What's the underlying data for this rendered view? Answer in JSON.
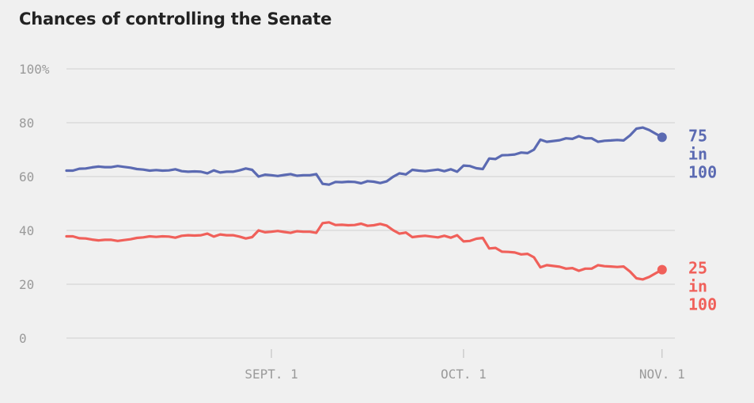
{
  "title": "Chances of controlling the Senate",
  "chart_data": {
    "type": "line",
    "title": "Chances of controlling the Senate",
    "xlabel": "",
    "ylabel": "",
    "ylim": [
      0,
      100
    ],
    "yticks": [
      "100%",
      "80",
      "60",
      "40",
      "20",
      "0"
    ],
    "xticks": [
      "SEPT. 1",
      "OCT. 1",
      "NOV. 1"
    ],
    "grid": true,
    "legend": "end-labels",
    "x_range": [
      "Jul 31",
      "Nov 3"
    ],
    "series": [
      {
        "name": "",
        "color": "#5b6ab2",
        "end_label": [
          "75",
          "in",
          "100"
        ],
        "points": [
          [
            0,
            62.2
          ],
          [
            1,
            62.2
          ],
          [
            2,
            62.9
          ],
          [
            3,
            63.0
          ],
          [
            4,
            63.4
          ],
          [
            5,
            63.7
          ],
          [
            6,
            63.5
          ],
          [
            7,
            63.5
          ],
          [
            8,
            63.9
          ],
          [
            9,
            63.6
          ],
          [
            10,
            63.3
          ],
          [
            11,
            62.8
          ],
          [
            12,
            62.6
          ],
          [
            13,
            62.2
          ],
          [
            14,
            62.4
          ],
          [
            15,
            62.2
          ],
          [
            16,
            62.3
          ],
          [
            17,
            62.7
          ],
          [
            18,
            62.0
          ],
          [
            19,
            61.8
          ],
          [
            20,
            61.9
          ],
          [
            21,
            61.8
          ],
          [
            22,
            61.2
          ],
          [
            23,
            62.3
          ],
          [
            24,
            61.5
          ],
          [
            25,
            61.8
          ],
          [
            26,
            61.8
          ],
          [
            27,
            62.3
          ],
          [
            28,
            63.0
          ],
          [
            29,
            62.5
          ],
          [
            30,
            60.0
          ],
          [
            31,
            60.7
          ],
          [
            32,
            60.5
          ],
          [
            33,
            60.2
          ],
          [
            34,
            60.6
          ],
          [
            35,
            60.9
          ],
          [
            36,
            60.3
          ],
          [
            37,
            60.5
          ],
          [
            38,
            60.5
          ],
          [
            39,
            60.9
          ],
          [
            40,
            57.3
          ],
          [
            41,
            57.0
          ],
          [
            42,
            58.0
          ],
          [
            43,
            57.9
          ],
          [
            44,
            58.1
          ],
          [
            45,
            58.0
          ],
          [
            46,
            57.5
          ],
          [
            47,
            58.3
          ],
          [
            48,
            58.1
          ],
          [
            49,
            57.6
          ],
          [
            50,
            58.2
          ],
          [
            51,
            59.9
          ],
          [
            52,
            61.2
          ],
          [
            53,
            60.8
          ],
          [
            54,
            62.5
          ],
          [
            55,
            62.2
          ],
          [
            56,
            62.0
          ],
          [
            57,
            62.3
          ],
          [
            58,
            62.6
          ],
          [
            59,
            62.0
          ],
          [
            60,
            62.7
          ],
          [
            61,
            61.8
          ],
          [
            62,
            64.1
          ],
          [
            63,
            63.9
          ],
          [
            64,
            63.1
          ],
          [
            65,
            62.8
          ],
          [
            66,
            66.7
          ],
          [
            67,
            66.5
          ],
          [
            68,
            67.9
          ],
          [
            69,
            68.0
          ],
          [
            70,
            68.2
          ],
          [
            71,
            68.9
          ],
          [
            72,
            68.7
          ],
          [
            73,
            70.0
          ],
          [
            74,
            73.7
          ],
          [
            75,
            72.9
          ],
          [
            76,
            73.2
          ],
          [
            77,
            73.5
          ],
          [
            78,
            74.2
          ],
          [
            79,
            74.0
          ],
          [
            80,
            75.0
          ],
          [
            81,
            74.2
          ],
          [
            82,
            74.2
          ],
          [
            83,
            72.9
          ],
          [
            84,
            73.3
          ],
          [
            85,
            73.4
          ],
          [
            86,
            73.6
          ],
          [
            87,
            73.4
          ],
          [
            88,
            75.3
          ],
          [
            89,
            77.8
          ],
          [
            90,
            78.2
          ],
          [
            91,
            77.3
          ],
          [
            92,
            75.9
          ],
          [
            93,
            74.6
          ]
        ]
      },
      {
        "name": "",
        "color": "#f0605a",
        "end_label": [
          "25",
          "in",
          "100"
        ],
        "points": [
          [
            0,
            37.8
          ],
          [
            1,
            37.8
          ],
          [
            2,
            37.1
          ],
          [
            3,
            37.0
          ],
          [
            4,
            36.6
          ],
          [
            5,
            36.3
          ],
          [
            6,
            36.5
          ],
          [
            7,
            36.5
          ],
          [
            8,
            36.1
          ],
          [
            9,
            36.4
          ],
          [
            10,
            36.7
          ],
          [
            11,
            37.2
          ],
          [
            12,
            37.4
          ],
          [
            13,
            37.8
          ],
          [
            14,
            37.6
          ],
          [
            15,
            37.8
          ],
          [
            16,
            37.7
          ],
          [
            17,
            37.3
          ],
          [
            18,
            38.0
          ],
          [
            19,
            38.2
          ],
          [
            20,
            38.1
          ],
          [
            21,
            38.2
          ],
          [
            22,
            38.8
          ],
          [
            23,
            37.7
          ],
          [
            24,
            38.5
          ],
          [
            25,
            38.2
          ],
          [
            26,
            38.2
          ],
          [
            27,
            37.7
          ],
          [
            28,
            37.0
          ],
          [
            29,
            37.5
          ],
          [
            30,
            40.0
          ],
          [
            31,
            39.3
          ],
          [
            32,
            39.5
          ],
          [
            33,
            39.8
          ],
          [
            34,
            39.4
          ],
          [
            35,
            39.1
          ],
          [
            36,
            39.7
          ],
          [
            37,
            39.5
          ],
          [
            38,
            39.5
          ],
          [
            39,
            39.1
          ],
          [
            40,
            42.7
          ],
          [
            41,
            43.0
          ],
          [
            42,
            42.0
          ],
          [
            43,
            42.1
          ],
          [
            44,
            41.9
          ],
          [
            45,
            42.0
          ],
          [
            46,
            42.5
          ],
          [
            47,
            41.7
          ],
          [
            48,
            41.9
          ],
          [
            49,
            42.4
          ],
          [
            50,
            41.8
          ],
          [
            51,
            40.1
          ],
          [
            52,
            38.8
          ],
          [
            53,
            39.2
          ],
          [
            54,
            37.5
          ],
          [
            55,
            37.8
          ],
          [
            56,
            38.0
          ],
          [
            57,
            37.7
          ],
          [
            58,
            37.4
          ],
          [
            59,
            38.0
          ],
          [
            60,
            37.3
          ],
          [
            61,
            38.2
          ],
          [
            62,
            35.9
          ],
          [
            63,
            36.1
          ],
          [
            64,
            36.9
          ],
          [
            65,
            37.2
          ],
          [
            66,
            33.3
          ],
          [
            67,
            33.5
          ],
          [
            68,
            32.1
          ],
          [
            69,
            32.0
          ],
          [
            70,
            31.8
          ],
          [
            71,
            31.1
          ],
          [
            72,
            31.3
          ],
          [
            73,
            30.0
          ],
          [
            74,
            26.3
          ],
          [
            75,
            27.1
          ],
          [
            76,
            26.8
          ],
          [
            77,
            26.5
          ],
          [
            78,
            25.8
          ],
          [
            79,
            26.0
          ],
          [
            80,
            25.0
          ],
          [
            81,
            25.8
          ],
          [
            82,
            25.8
          ],
          [
            83,
            27.1
          ],
          [
            84,
            26.7
          ],
          [
            85,
            26.6
          ],
          [
            86,
            26.4
          ],
          [
            87,
            26.6
          ],
          [
            88,
            24.7
          ],
          [
            89,
            22.2
          ],
          [
            90,
            21.8
          ],
          [
            91,
            22.7
          ],
          [
            92,
            24.1
          ],
          [
            93,
            25.4
          ]
        ]
      }
    ]
  }
}
